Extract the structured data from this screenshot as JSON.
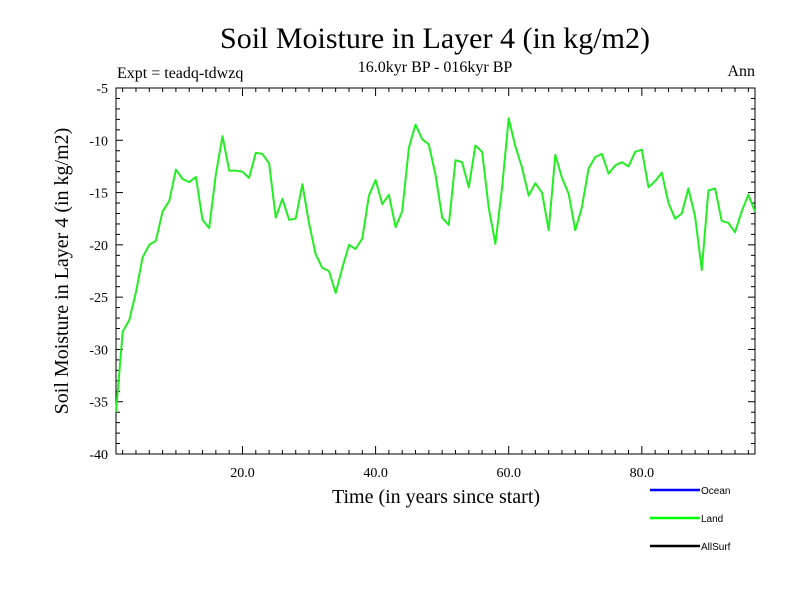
{
  "chart_data": {
    "type": "line",
    "title": "Soil Moisture in Layer 4 (in kg/m2)",
    "subtitle": "16.0kyr BP - 016kyr BP",
    "experiment": "Expt = teadq-tdwzq",
    "period": "Ann",
    "xlabel": "Time (in years since start)",
    "ylabel": "Soil Moisture in Layer 4 (in kg/m2)",
    "xlim": [
      1,
      97
    ],
    "ylim": [
      -40,
      -5
    ],
    "xticks": [
      20,
      40,
      60,
      80
    ],
    "xtick_labels": [
      "20.0",
      "40.0",
      "60.0",
      "80.0"
    ],
    "yticks": [
      -40,
      -35,
      -30,
      -25,
      -20,
      -15,
      -10,
      -5
    ],
    "ytick_labels": [
      "-40",
      "-35",
      "-30",
      "-25",
      "-20",
      "-15",
      "-10",
      "-5"
    ],
    "legend": [
      {
        "name": "Ocean",
        "color": "#0000ff"
      },
      {
        "name": "Land",
        "color": "#00ff00"
      },
      {
        "name": "AllSurf",
        "color": "#000000"
      }
    ],
    "series": [
      {
        "name": "Land",
        "color": "#22ee22",
        "x": [
          1,
          2,
          3,
          4,
          5,
          6,
          7,
          8,
          9,
          10,
          11,
          12,
          13,
          14,
          15,
          16,
          17,
          18,
          19,
          20,
          21,
          22,
          23,
          24,
          25,
          26,
          27,
          28,
          29,
          30,
          31,
          32,
          33,
          34,
          35,
          36,
          37,
          38,
          39,
          40,
          41,
          42,
          43,
          44,
          45,
          46,
          47,
          48,
          49,
          50,
          51,
          52,
          53,
          54,
          55,
          56,
          57,
          58,
          59,
          60,
          61,
          62,
          63,
          64,
          65,
          66,
          67,
          68,
          69,
          70,
          71,
          72,
          73,
          74,
          75,
          76,
          77,
          78,
          79,
          80,
          81,
          82,
          83,
          84,
          85,
          86,
          87,
          88,
          89,
          90,
          91,
          92,
          93,
          94,
          95,
          96,
          97
        ],
        "values": [
          -36.0,
          -28.3,
          -27.2,
          -24.5,
          -21.2,
          -20.0,
          -19.6,
          -16.8,
          -15.8,
          -12.8,
          -13.7,
          -14.0,
          -13.5,
          -17.6,
          -18.4,
          -13.3,
          -9.6,
          -12.9,
          -12.9,
          -13.0,
          -13.6,
          -11.2,
          -11.3,
          -12.2,
          -17.4,
          -15.6,
          -17.6,
          -17.5,
          -14.2,
          -17.9,
          -20.9,
          -22.2,
          -22.5,
          -24.6,
          -22.2,
          -20.0,
          -20.4,
          -19.4,
          -15.3,
          -13.8,
          -16.1,
          -15.2,
          -18.3,
          -16.8,
          -10.7,
          -8.5,
          -9.9,
          -10.4,
          -13.3,
          -17.4,
          -18.1,
          -11.9,
          -12.1,
          -14.5,
          -10.5,
          -11.1,
          -16.5,
          -19.9,
          -14.5,
          -7.9,
          -10.6,
          -12.6,
          -15.3,
          -14.1,
          -15.0,
          -18.6,
          -11.4,
          -13.6,
          -15.1,
          -18.6,
          -16.4,
          -12.7,
          -11.6,
          -11.3,
          -13.2,
          -12.4,
          -12.1,
          -12.5,
          -11.1,
          -10.9,
          -14.5,
          -13.9,
          -13.1,
          -16.0,
          -17.5,
          -17.0,
          -14.6,
          -17.3,
          -22.4,
          -14.8,
          -14.6,
          -17.7,
          -17.9,
          -18.8,
          -16.8,
          -15.2,
          -16.8
        ]
      }
    ]
  }
}
